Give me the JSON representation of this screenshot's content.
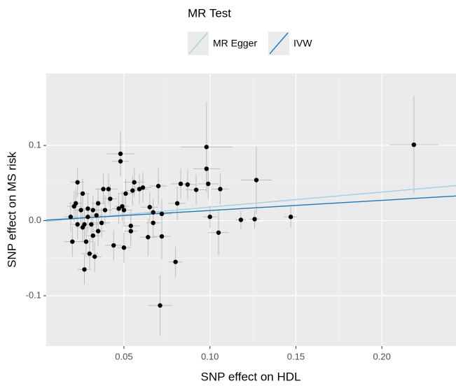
{
  "chart_data": {
    "type": "scatter",
    "x_label": "SNP effect on HDL",
    "y_label": "SNP effect on MS risk",
    "legend_title": "MR Test",
    "legend_position": "top",
    "grid": true,
    "xlim": [
      0.0048,
      0.2431
    ],
    "ylim": [
      -0.167,
      0.196
    ],
    "xticks": [
      0.05,
      {
        "value": 0.1,
        "label": "0.10"
      },
      0.15,
      {
        "value": 0.2,
        "label": "0.20"
      }
    ],
    "yticks": [
      -0.1,
      {
        "value": 0,
        "label": "0.0"
      },
      0.1
    ],
    "point_color": "#000000",
    "errorbar_color": "#bdbdbd",
    "x": [
      0.2186,
      0.147,
      0.127,
      0.126,
      0.118,
      0.105,
      0.106,
      0.098,
      0.098,
      0.099,
      0.1,
      0.092,
      0.087,
      0.083,
      0.081,
      0.08,
      0.071,
      0.07,
      0.072,
      0.072,
      0.067,
      0.065,
      0.064,
      0.067,
      0.061,
      0.059,
      0.056,
      0.055,
      0.048,
      0.048,
      0.05,
      0.051,
      0.05,
      0.049,
      0.047,
      0.054,
      0.054,
      0.041,
      0.042,
      0.044,
      0.039,
      0.038,
      0.035,
      0.035,
      0.032,
      0.033,
      0.03,
      0.027,
      0.028,
      0.027,
      0.025,
      0.023,
      0.022,
      0.02,
      0.021,
      0.023,
      0.026,
      0.029,
      0.031,
      0.019,
      0.037,
      0.029,
      0.034,
      0.026,
      0.032
    ],
    "y": [
      0.101,
      0.005,
      0.054,
      0.002,
      0.001,
      -0.016,
      0.042,
      0.098,
      0.069,
      0.049,
      0.005,
      0.041,
      0.048,
      0.049,
      0.023,
      -0.055,
      -0.113,
      0.046,
      0.009,
      -0.021,
      0.011,
      0.018,
      -0.022,
      -0.003,
      0.044,
      0.042,
      0.051,
      0.04,
      0.089,
      0.079,
      -0.036,
      0.036,
      0.014,
      0.019,
      0.016,
      -0.007,
      -0.014,
      0.042,
      0.029,
      -0.033,
      0.014,
      0.042,
      0.023,
      -0.014,
      -0.02,
      -0.048,
      -0.044,
      -0.065,
      -0.028,
      -0.005,
      0.014,
      0.051,
      0.023,
      -0.028,
      0.019,
      -0.005,
      0.036,
      0.005,
      -0.005,
      0.005,
      -0.003,
      0.016,
      0.007,
      -0.009,
      0.014
    ],
    "xerr": [
      0.014,
      0.004,
      0.009,
      0.003,
      0.003,
      0.006,
      0.005,
      0.015,
      0.008,
      0.006,
      0.004,
      0.006,
      0.005,
      0.006,
      0.005,
      0.004,
      0.007,
      0.005,
      0.006,
      0.005,
      0.004,
      0.005,
      0.005,
      0.004,
      0.005,
      0.005,
      0.006,
      0.004,
      0.008,
      0.005,
      0.004,
      0.005,
      0.005,
      0.004,
      0.004,
      0.005,
      0.004,
      0.005,
      0.004,
      0.005,
      0.004,
      0.005,
      0.004,
      0.004,
      0.004,
      0.004,
      0.005,
      0.004,
      0.004,
      0.005,
      0.004,
      0.004,
      0.004,
      0.005,
      0.004,
      0.004,
      0.004,
      0.005,
      0.004,
      0.004,
      0.005,
      0.004,
      0.004,
      0.004,
      0.004
    ],
    "yerr": [
      0.065,
      0.014,
      0.045,
      0.012,
      0.012,
      0.03,
      0.02,
      0.06,
      0.025,
      0.02,
      0.015,
      0.02,
      0.02,
      0.02,
      0.022,
      0.02,
      0.04,
      0.025,
      0.02,
      0.03,
      0.018,
      0.02,
      0.025,
      0.02,
      0.02,
      0.02,
      0.02,
      0.02,
      0.03,
      0.02,
      0.02,
      0.02,
      0.02,
      0.02,
      0.02,
      0.02,
      0.02,
      0.02,
      0.02,
      0.02,
      0.02,
      0.02,
      0.02,
      0.02,
      0.02,
      0.02,
      0.02,
      0.02,
      0.02,
      0.02,
      0.02,
      0.02,
      0.02,
      0.02,
      0.02,
      0.02,
      0.02,
      0.02,
      0.02,
      0.02,
      0.02,
      0.02,
      0.02,
      0.02,
      0.02
    ],
    "lines": [
      {
        "name": "MR Egger",
        "color": "#a6cee3",
        "slope": 0.2,
        "intercept": -0.002
      },
      {
        "name": "IVW",
        "color": "#1f78b4",
        "slope": 0.135,
        "intercept": 0
      }
    ]
  }
}
